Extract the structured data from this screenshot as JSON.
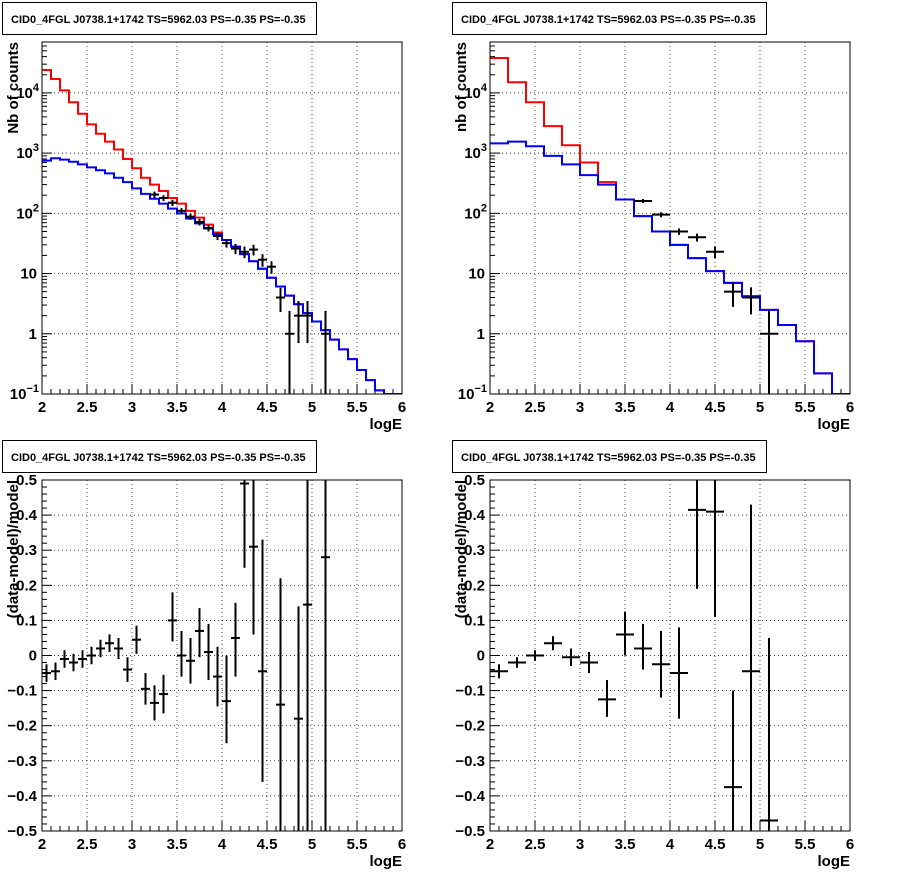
{
  "chart_data": [
    {
      "type": "line",
      "title": "CID0_4FGL J0738.1+1742 TS=5962.03 PS=-0.35 PS=-0.35",
      "xlabel": "logE",
      "ylabel": "Nb of counts",
      "xlim": [
        2,
        6
      ],
      "ylim": [
        0.1,
        70000
      ],
      "y_scale": "log",
      "grid": true,
      "x_ticks": [
        "2",
        "2.5",
        "3",
        "3.5",
        "4",
        "4.5",
        "5",
        "5.5",
        "6"
      ],
      "y_ticks": [
        {
          "v": 0.1,
          "m": "10",
          "e": "−1"
        },
        {
          "v": 1,
          "m": "1",
          "e": ""
        },
        {
          "v": 10,
          "m": "10",
          "e": ""
        },
        {
          "v": 100,
          "m": "10",
          "e": "2"
        },
        {
          "v": 1000,
          "m": "10",
          "e": "3"
        },
        {
          "v": 10000,
          "m": "10",
          "e": "4"
        }
      ],
      "bin_edges": [
        2.0,
        2.1,
        2.2,
        2.3,
        2.4,
        2.5,
        2.6,
        2.7,
        2.8,
        2.9,
        3.0,
        3.1,
        3.2,
        3.3,
        3.4,
        3.5,
        3.6,
        3.7,
        3.8,
        3.9,
        4.0,
        4.1,
        4.2,
        4.3,
        4.4,
        4.5,
        4.6,
        4.7,
        4.8,
        4.9,
        5.0,
        5.1,
        5.2,
        5.3,
        5.4,
        5.5,
        5.6,
        5.7,
        5.8,
        5.9,
        6.0
      ],
      "series": [
        {
          "kind": "hist",
          "color": "#ff0000",
          "values": [
            24000,
            17000,
            11000,
            7000,
            4500,
            3000,
            2100,
            1550,
            1150,
            800,
            560,
            390,
            300,
            235,
            180,
            145,
            110,
            85,
            65,
            48,
            36,
            28,
            21,
            16,
            12,
            8.5,
            6.1,
            4.3,
            3.1,
            2.2,
            1.6,
            1.15,
            0.8,
            0.55,
            0.38,
            0.25,
            0.17,
            0.115,
            0.085,
            0.06
          ]
        },
        {
          "kind": "hist",
          "color": "#0000ff",
          "values": [
            750,
            820,
            780,
            720,
            650,
            580,
            520,
            460,
            390,
            330,
            260,
            210,
            175,
            145,
            120,
            100,
            82,
            68,
            56,
            45,
            36,
            28,
            21,
            16,
            12,
            8.5,
            6.1,
            4.3,
            3.1,
            2.2,
            1.6,
            1.15,
            0.8,
            0.55,
            0.38,
            0.25,
            0.17,
            0.115,
            0.085,
            0.06
          ]
        },
        {
          "kind": "points",
          "color": "#000000",
          "x": [
            3.25,
            3.35,
            3.45,
            3.55,
            3.65,
            3.75,
            3.85,
            3.95,
            4.05,
            4.15,
            4.25,
            4.35,
            4.45,
            4.55,
            4.65,
            4.75,
            4.85,
            4.95,
            5.15
          ],
          "y": [
            205,
            180,
            150,
            110,
            88,
            72,
            57,
            42,
            32,
            26,
            23,
            25,
            17,
            13,
            4,
            1,
            2,
            2,
            1
          ],
          "ylo": [
            180,
            160,
            132,
            98,
            78,
            63,
            50,
            36,
            27,
            21,
            18,
            20,
            13,
            10,
            2.3,
            0.1,
            0.7,
            0.7,
            0.1
          ],
          "yhi": [
            230,
            200,
            168,
            122,
            98,
            81,
            64,
            48,
            37,
            31,
            28,
            30,
            21,
            16,
            5.8,
            2.4,
            3.5,
            3.5,
            2.4
          ]
        }
      ]
    },
    {
      "type": "line",
      "title": "CID0_4FGL J0738.1+1742 TS=5962.03 PS=-0.35 PS=-0.35",
      "xlabel": "logE",
      "ylabel": "nb of counts",
      "xlim": [
        2,
        6
      ],
      "ylim": [
        0.1,
        70000
      ],
      "y_scale": "log",
      "grid": true,
      "x_ticks": [
        "2",
        "2.5",
        "3",
        "3.5",
        "4",
        "4.5",
        "5",
        "5.5",
        "6"
      ],
      "y_ticks": [
        {
          "v": 0.1,
          "m": "10",
          "e": "−1"
        },
        {
          "v": 1,
          "m": "1",
          "e": ""
        },
        {
          "v": 10,
          "m": "10",
          "e": ""
        },
        {
          "v": 100,
          "m": "10",
          "e": "2"
        },
        {
          "v": 1000,
          "m": "10",
          "e": "3"
        },
        {
          "v": 10000,
          "m": "10",
          "e": "4"
        }
      ],
      "bin_edges": [
        2.0,
        2.2,
        2.4,
        2.6,
        2.8,
        3.0,
        3.2,
        3.4,
        3.6,
        3.8,
        4.0,
        4.2,
        4.4,
        4.6,
        4.8,
        5.0,
        5.2,
        5.4,
        5.6,
        5.8,
        6.0
      ],
      "series": [
        {
          "kind": "hist",
          "color": "#ff0000",
          "values": [
            38000,
            15000,
            7000,
            2800,
            1350,
            700,
            330,
            170,
            90,
            50,
            30,
            18,
            11,
            7,
            4.2,
            2.5,
            1.4,
            0.75,
            0.22,
            0.1
          ]
        },
        {
          "kind": "hist",
          "color": "#0000ff",
          "values": [
            1450,
            1550,
            1300,
            900,
            650,
            430,
            300,
            170,
            90,
            50,
            30,
            18,
            11,
            7,
            4.2,
            2.5,
            1.4,
            0.75,
            0.22,
            0.1
          ]
        },
        {
          "kind": "points",
          "color": "#000000",
          "x": [
            3.7,
            3.9,
            4.1,
            4.3,
            4.5,
            4.7,
            4.9,
            5.1
          ],
          "y": [
            160,
            95,
            50,
            40,
            23,
            5,
            4,
            1
          ],
          "ylo": [
            148,
            86,
            44,
            34,
            18,
            2.8,
            2.1,
            0.1
          ],
          "yhi": [
            173,
            104,
            56,
            46,
            28,
            7.2,
            5.9,
            2.4
          ]
        }
      ]
    },
    {
      "type": "scatter",
      "title": "CID0_4FGL J0738.1+1742 TS=5962.03 PS=-0.35 PS=-0.35",
      "xlabel": "logE",
      "ylabel": "(data-model)/model",
      "xlim": [
        2,
        6
      ],
      "ylim": [
        -0.5,
        0.5
      ],
      "y_scale": "linear",
      "grid": true,
      "x_ticks": [
        "2",
        "2.5",
        "3",
        "3.5",
        "4",
        "4.5",
        "5",
        "5.5",
        "6"
      ],
      "y_tick_labels": [
        "−0.5",
        "−0.4",
        "−0.3",
        "−0.2",
        "−0.1",
        "0",
        "0.1",
        "0.2",
        "0.3",
        "0.4",
        "0.5"
      ],
      "points": {
        "x": [
          2.05,
          2.15,
          2.25,
          2.35,
          2.45,
          2.55,
          2.65,
          2.75,
          2.85,
          2.95,
          3.05,
          3.15,
          3.25,
          3.35,
          3.45,
          3.55,
          3.65,
          3.75,
          3.85,
          3.95,
          4.05,
          4.15,
          4.25,
          4.35,
          4.45,
          4.65,
          4.85,
          4.95,
          5.15
        ],
        "y": [
          -0.05,
          -0.045,
          -0.01,
          -0.02,
          -0.01,
          0.0,
          0.02,
          0.035,
          0.02,
          -0.04,
          0.045,
          -0.095,
          -0.135,
          -0.11,
          0.1,
          0.0,
          -0.015,
          0.07,
          0.01,
          -0.06,
          -0.13,
          0.05,
          0.49,
          0.31,
          -0.045,
          -0.14,
          -0.18,
          0.145,
          0.28
        ],
        "ylo": [
          -0.075,
          -0.07,
          -0.035,
          -0.045,
          -0.035,
          -0.025,
          -0.005,
          0.01,
          -0.01,
          -0.075,
          0.005,
          -0.14,
          -0.185,
          -0.165,
          0.04,
          -0.06,
          -0.08,
          -0.005,
          -0.07,
          -0.145,
          -0.25,
          -0.06,
          0.25,
          0.06,
          -0.36,
          -0.5,
          -0.5,
          -0.5,
          -0.5
        ],
        "yhi": [
          -0.025,
          -0.02,
          0.015,
          0.005,
          0.015,
          0.025,
          0.045,
          0.06,
          0.05,
          -0.005,
          0.085,
          -0.05,
          -0.085,
          -0.055,
          0.18,
          0.07,
          0.05,
          0.135,
          0.09,
          0.025,
          0.0,
          0.15,
          0.5,
          0.5,
          0.33,
          0.22,
          0.14,
          0.5,
          0.5
        ]
      }
    },
    {
      "type": "scatter",
      "title": "CID0_4FGL J0738.1+1742 TS=5962.03 PS=-0.35 PS=-0.35",
      "xlabel": "logE",
      "ylabel": "(data-model)/model",
      "xlim": [
        2,
        6
      ],
      "ylim": [
        -0.5,
        0.5
      ],
      "y_scale": "linear",
      "grid": true,
      "x_ticks": [
        "2",
        "2.5",
        "3",
        "3.5",
        "4",
        "4.5",
        "5",
        "5.5",
        "6"
      ],
      "y_tick_labels": [
        "−0.5",
        "−0.4",
        "−0.3",
        "−0.2",
        "−0.1",
        "0",
        "0.1",
        "0.2",
        "0.3",
        "0.4",
        "0.5"
      ],
      "points": {
        "x": [
          2.1,
          2.3,
          2.5,
          2.7,
          2.9,
          3.1,
          3.3,
          3.5,
          3.7,
          3.9,
          4.1,
          4.3,
          4.5,
          4.7,
          4.9,
          5.1
        ],
        "y": [
          -0.045,
          -0.02,
          0.0,
          0.035,
          -0.005,
          -0.02,
          -0.125,
          0.06,
          0.02,
          -0.025,
          -0.05,
          0.415,
          0.41,
          -0.375,
          -0.045,
          -0.47
        ],
        "ylo": [
          -0.065,
          -0.035,
          -0.015,
          0.015,
          -0.03,
          -0.05,
          -0.175,
          0.0,
          -0.04,
          -0.12,
          -0.18,
          0.19,
          0.11,
          -0.5,
          -0.5,
          -0.5
        ],
        "yhi": [
          -0.025,
          -0.005,
          0.015,
          0.055,
          0.02,
          0.01,
          -0.07,
          0.125,
          0.09,
          0.07,
          0.08,
          0.5,
          0.5,
          -0.1,
          0.43,
          0.05
        ]
      }
    }
  ]
}
